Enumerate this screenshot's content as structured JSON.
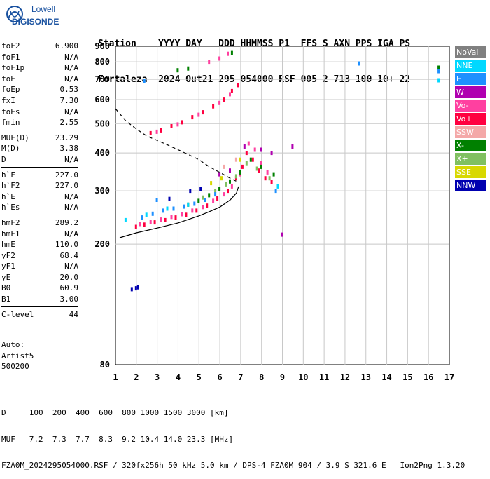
{
  "logo": {
    "line1": "Lowell",
    "line2": "DIGISONDE"
  },
  "header": {
    "line1": "Station    YYYY DAY   DDD HHMMSS P1  FFS S AXN PPS IGA PS",
    "line2": "Fortaleza  2024 Out21 295 054000 RSF 005 2 713 100 10+ 22"
  },
  "params": {
    "group1": [
      {
        "name": "foF2",
        "value": "6.900"
      },
      {
        "name": "foF1",
        "value": "N/A"
      },
      {
        "name": "foF1p",
        "value": "N/A"
      },
      {
        "name": "foE",
        "value": "N/A"
      },
      {
        "name": "foEp",
        "value": "0.53"
      },
      {
        "name": "fxI",
        "value": "7.30"
      },
      {
        "name": "foEs",
        "value": "N/A"
      },
      {
        "name": "fmin",
        "value": "2.55"
      }
    ],
    "group2": [
      {
        "name": "MUF(D)",
        "value": "23.29"
      },
      {
        "name": "M(D)",
        "value": "3.38"
      },
      {
        "name": "D",
        "value": "N/A"
      }
    ],
    "group3": [
      {
        "name": "h`F",
        "value": "227.0"
      },
      {
        "name": "h`F2",
        "value": "227.0"
      },
      {
        "name": "h`E",
        "value": "N/A"
      },
      {
        "name": "h`Es",
        "value": "N/A"
      }
    ],
    "group4": [
      {
        "name": "hmF2",
        "value": "289.2"
      },
      {
        "name": "hmF1",
        "value": "N/A"
      },
      {
        "name": "hmE",
        "value": "110.0"
      },
      {
        "name": "yF2",
        "value": "68.4"
      },
      {
        "name": "yF1",
        "value": "N/A"
      },
      {
        "name": "yE",
        "value": "20.0"
      },
      {
        "name": "B0",
        "value": "60.9"
      },
      {
        "name": "B1",
        "value": "3.00"
      }
    ],
    "group5": [
      {
        "name": "C-level",
        "value": "44"
      }
    ],
    "extra": [
      "Auto:",
      "Artist5",
      "500200"
    ]
  },
  "legend": [
    {
      "label": "NoVal",
      "color": "#808080"
    },
    {
      "label": "NNE",
      "color": "#00d8ff"
    },
    {
      "label": "E",
      "color": "#1e90ff"
    },
    {
      "label": "W",
      "color": "#b000b0"
    },
    {
      "label": "Vo-",
      "color": "#ff40a0"
    },
    {
      "label": "Vo+",
      "color": "#ff0040"
    },
    {
      "label": "SSW",
      "color": "#f4a8a8"
    },
    {
      "label": "X-",
      "color": "#008000"
    },
    {
      "label": "X+",
      "color": "#80c060"
    },
    {
      "label": "SSE",
      "color": "#d8d800"
    },
    {
      "label": "NNW",
      "color": "#0000b0"
    }
  ],
  "chart_data": {
    "type": "scatter",
    "title": "",
    "xlabel": "",
    "ylabel": "",
    "xlim": [
      1,
      17
    ],
    "ylim": [
      80,
      900
    ],
    "yscale": "log",
    "x_ticks": [
      1,
      2,
      3,
      4,
      5,
      6,
      7,
      8,
      9,
      10,
      11,
      12,
      13,
      14,
      15,
      16,
      17
    ],
    "y_ticks": [
      80,
      200,
      300,
      400,
      500,
      600,
      700,
      800,
      900
    ],
    "grid": true,
    "mpf_trace": {
      "x": [
        1.0,
        1.5,
        2.0,
        2.5,
        3.0,
        3.5,
        4.0,
        4.5,
        5.0,
        5.5,
        6.0,
        6.5,
        6.9
      ],
      "y": [
        560,
        510,
        480,
        455,
        440,
        425,
        410,
        395,
        380,
        360,
        345,
        330,
        320
      ]
    },
    "profile_trace": {
      "x": [
        1.2,
        2.0,
        3.0,
        4.0,
        5.0,
        5.5,
        6.0,
        6.5,
        6.8,
        6.9
      ],
      "y": [
        210,
        218,
        226,
        235,
        248,
        256,
        265,
        280,
        295,
        310
      ]
    },
    "series": [
      {
        "name": "Vo+",
        "points": [
          [
            2.0,
            228
          ],
          [
            2.4,
            232
          ],
          [
            2.9,
            236
          ],
          [
            3.4,
            240
          ],
          [
            3.9,
            245
          ],
          [
            4.4,
            250
          ],
          [
            4.9,
            258
          ],
          [
            5.4,
            268
          ],
          [
            5.9,
            283
          ],
          [
            6.4,
            300
          ],
          [
            6.8,
            330
          ],
          [
            7.1,
            360
          ],
          [
            7.3,
            400
          ],
          [
            7.6,
            380
          ],
          [
            7.9,
            350
          ],
          [
            8.2,
            330
          ],
          [
            8.5,
            320
          ],
          [
            2.7,
            465
          ],
          [
            3.2,
            475
          ],
          [
            3.7,
            490
          ],
          [
            4.2,
            505
          ],
          [
            4.7,
            525
          ],
          [
            5.2,
            545
          ],
          [
            5.7,
            570
          ],
          [
            6.2,
            600
          ],
          [
            6.6,
            640
          ],
          [
            6.9,
            670
          ]
        ]
      },
      {
        "name": "Vo-",
        "points": [
          [
            2.2,
            233
          ],
          [
            2.7,
            237
          ],
          [
            3.2,
            241
          ],
          [
            3.7,
            246
          ],
          [
            4.2,
            251
          ],
          [
            4.7,
            258
          ],
          [
            5.2,
            265
          ],
          [
            5.7,
            278
          ],
          [
            6.2,
            292
          ],
          [
            6.6,
            310
          ],
          [
            7.0,
            340
          ],
          [
            7.4,
            430
          ],
          [
            7.7,
            410
          ],
          [
            8.0,
            370
          ],
          [
            8.3,
            345
          ],
          [
            5.5,
            800
          ],
          [
            6.0,
            820
          ],
          [
            6.4,
            850
          ],
          [
            3.0,
            470
          ],
          [
            4.0,
            497
          ],
          [
            5.0,
            535
          ],
          [
            6.0,
            585
          ],
          [
            6.5,
            625
          ]
        ]
      },
      {
        "name": "X-",
        "points": [
          [
            4.5,
            270
          ],
          [
            5.0,
            278
          ],
          [
            5.5,
            290
          ],
          [
            6.0,
            305
          ],
          [
            6.5,
            322
          ],
          [
            7.0,
            345
          ],
          [
            7.5,
            380
          ],
          [
            8.0,
            360
          ],
          [
            8.6,
            340
          ],
          [
            6.6,
            855
          ],
          [
            4.0,
            750
          ],
          [
            4.5,
            760
          ],
          [
            16.5,
            765
          ]
        ]
      },
      {
        "name": "X+",
        "points": [
          [
            5.2,
            285
          ],
          [
            5.8,
            300
          ],
          [
            6.3,
            315
          ],
          [
            6.8,
            335
          ],
          [
            7.3,
            370
          ],
          [
            7.8,
            355
          ],
          [
            8.4,
            330
          ]
        ]
      },
      {
        "name": "E",
        "points": [
          [
            2.3,
            245
          ],
          [
            2.8,
            252
          ],
          [
            3.3,
            258
          ],
          [
            3.8,
            262
          ],
          [
            4.3,
            266
          ],
          [
            4.8,
            272
          ],
          [
            5.3,
            280
          ],
          [
            5.8,
            292
          ],
          [
            8.7,
            300
          ],
          [
            3.0,
            280
          ],
          [
            12.7,
            790
          ],
          [
            16.5,
            745
          ],
          [
            2.4,
            690
          ]
        ]
      },
      {
        "name": "NNE",
        "points": [
          [
            1.5,
            240
          ],
          [
            2.5,
            250
          ],
          [
            3.5,
            262
          ],
          [
            4.5,
            270
          ],
          [
            8.8,
            310
          ],
          [
            16.5,
            695
          ]
        ]
      },
      {
        "name": "W",
        "points": [
          [
            6.0,
            340
          ],
          [
            6.5,
            350
          ],
          [
            7.2,
            420
          ],
          [
            8.0,
            410
          ],
          [
            8.5,
            400
          ],
          [
            9.0,
            215
          ],
          [
            9.5,
            420
          ]
        ]
      },
      {
        "name": "NNW",
        "points": [
          [
            1.8,
            142
          ],
          [
            2.0,
            143
          ],
          [
            2.1,
            144
          ],
          [
            4.6,
            300
          ],
          [
            5.1,
            305
          ],
          [
            3.6,
            282
          ]
        ]
      },
      {
        "name": "SSE",
        "points": [
          [
            5.6,
            318
          ],
          [
            6.1,
            330
          ],
          [
            7.0,
            380
          ]
        ]
      },
      {
        "name": "SSW",
        "points": [
          [
            6.2,
            360
          ],
          [
            6.8,
            380
          ]
        ]
      }
    ]
  },
  "footer": {
    "line1": "D     100  200  400  600  800 1000 1500 3000 [km]",
    "line2": "MUF   7.2  7.3  7.7  8.3  9.2 10.4 14.0 23.3 [MHz]",
    "line3": "FZA0M_2024295054000.RSF / 320fx256h 50 kHz 5.0 km / DPS-4 FZA0M 904 / 3.9 S 321.6 E   Ion2Png 1.3.20"
  }
}
